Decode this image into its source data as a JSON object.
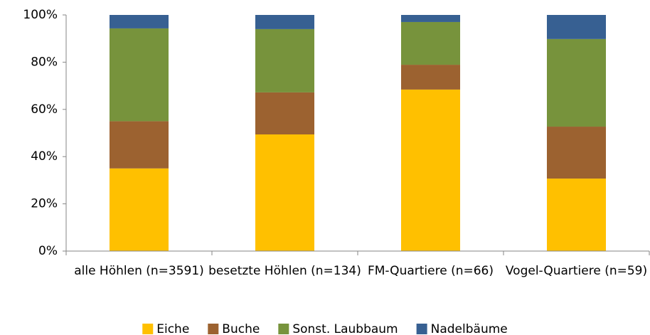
{
  "chart_data": {
    "type": "stacked_bar",
    "categories": [
      "alle Höhlen (n=3591)",
      "besetzte Höhlen (n=134)",
      "FM-Quartiere (n=66)",
      "Vogel-Quartiere (n=59)"
    ],
    "series": [
      {
        "name": "Eiche",
        "color": "#ffc000",
        "values": [
          35,
          49.4,
          68.4,
          30.7
        ]
      },
      {
        "name": "Buche",
        "color": "#9c6230",
        "values": [
          20,
          17.8,
          10.5,
          22
        ]
      },
      {
        "name": "Sonst. Laubbaum",
        "color": "#77933c",
        "values": [
          39.3,
          26.8,
          18.1,
          37.1
        ]
      },
      {
        "name": "Nadelbäume",
        "color": "#376092",
        "values": [
          5.7,
          6,
          3,
          10.2
        ]
      }
    ],
    "ylim": [
      0,
      100
    ],
    "yticks": [
      {
        "value": 0,
        "label": "0%"
      },
      {
        "value": 20,
        "label": "20%"
      },
      {
        "value": 40,
        "label": "40%"
      },
      {
        "value": 60,
        "label": "60%"
      },
      {
        "value": 80,
        "label": "80%"
      },
      {
        "value": 100,
        "label": "100%"
      }
    ],
    "grid": false,
    "legend": "bottom"
  }
}
